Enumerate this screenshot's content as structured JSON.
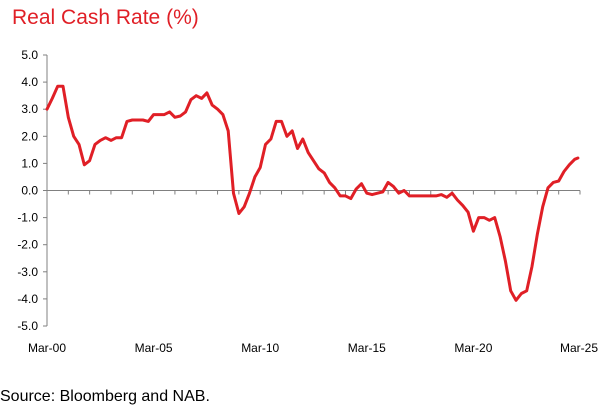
{
  "chart_data": {
    "type": "line",
    "title": "Real Cash Rate (%)",
    "xlabel": "",
    "ylabel": "",
    "y_ticks": [
      "5.0",
      "4.0",
      "3.0",
      "2.0",
      "1.0",
      "0.0",
      "-1.0",
      "-2.0",
      "-3.0",
      "-4.0",
      "-5.0"
    ],
    "ylim": [
      -5,
      5
    ],
    "x_ticks": [
      {
        "label": "Mar-00",
        "year": 2000.17
      },
      {
        "label": "Mar-05",
        "year": 2005.17
      },
      {
        "label": "Mar-10",
        "year": 2010.17
      },
      {
        "label": "Mar-15",
        "year": 2015.17
      },
      {
        "label": "Mar-20",
        "year": 2020.17
      },
      {
        "label": "Mar-25",
        "year": 2025.17
      }
    ],
    "xlim": [
      2000.17,
      2025.17
    ],
    "grid": false,
    "line_color": "#e01f26",
    "series": [
      {
        "points": [
          [
            2000.17,
            3.0
          ],
          [
            2000.42,
            3.4
          ],
          [
            2000.67,
            3.85
          ],
          [
            2000.92,
            3.85
          ],
          [
            2001.17,
            2.7
          ],
          [
            2001.42,
            2.0
          ],
          [
            2001.67,
            1.7
          ],
          [
            2001.92,
            0.95
          ],
          [
            2002.17,
            1.1
          ],
          [
            2002.42,
            1.7
          ],
          [
            2002.67,
            1.85
          ],
          [
            2002.92,
            1.95
          ],
          [
            2003.17,
            1.85
          ],
          [
            2003.42,
            1.95
          ],
          [
            2003.67,
            1.95
          ],
          [
            2003.92,
            2.55
          ],
          [
            2004.17,
            2.6
          ],
          [
            2004.42,
            2.6
          ],
          [
            2004.67,
            2.6
          ],
          [
            2004.92,
            2.55
          ],
          [
            2005.17,
            2.8
          ],
          [
            2005.42,
            2.8
          ],
          [
            2005.67,
            2.8
          ],
          [
            2005.92,
            2.9
          ],
          [
            2006.17,
            2.7
          ],
          [
            2006.42,
            2.75
          ],
          [
            2006.67,
            2.9
          ],
          [
            2006.92,
            3.35
          ],
          [
            2007.17,
            3.5
          ],
          [
            2007.42,
            3.4
          ],
          [
            2007.67,
            3.6
          ],
          [
            2007.92,
            3.15
          ],
          [
            2008.17,
            3.0
          ],
          [
            2008.42,
            2.8
          ],
          [
            2008.67,
            2.2
          ],
          [
            2008.92,
            -0.1
          ],
          [
            2009.17,
            -0.85
          ],
          [
            2009.42,
            -0.6
          ],
          [
            2009.67,
            -0.1
          ],
          [
            2009.92,
            0.5
          ],
          [
            2010.17,
            0.85
          ],
          [
            2010.42,
            1.7
          ],
          [
            2010.67,
            1.9
          ],
          [
            2010.92,
            2.55
          ],
          [
            2011.17,
            2.55
          ],
          [
            2011.42,
            2.0
          ],
          [
            2011.67,
            2.2
          ],
          [
            2011.92,
            1.55
          ],
          [
            2012.17,
            1.9
          ],
          [
            2012.42,
            1.4
          ],
          [
            2012.67,
            1.1
          ],
          [
            2012.92,
            0.8
          ],
          [
            2013.17,
            0.65
          ],
          [
            2013.42,
            0.3
          ],
          [
            2013.67,
            0.1
          ],
          [
            2013.92,
            -0.2
          ],
          [
            2014.17,
            -0.2
          ],
          [
            2014.42,
            -0.3
          ],
          [
            2014.67,
            0.05
          ],
          [
            2014.92,
            0.25
          ],
          [
            2015.17,
            -0.1
          ],
          [
            2015.42,
            -0.15
          ],
          [
            2015.67,
            -0.1
          ],
          [
            2015.92,
            -0.05
          ],
          [
            2016.17,
            0.3
          ],
          [
            2016.42,
            0.15
          ],
          [
            2016.67,
            -0.1
          ],
          [
            2016.92,
            0.0
          ],
          [
            2017.17,
            -0.2
          ],
          [
            2017.42,
            -0.2
          ],
          [
            2017.67,
            -0.2
          ],
          [
            2017.92,
            -0.2
          ],
          [
            2018.17,
            -0.2
          ],
          [
            2018.42,
            -0.2
          ],
          [
            2018.67,
            -0.15
          ],
          [
            2018.92,
            -0.25
          ],
          [
            2019.17,
            -0.1
          ],
          [
            2019.42,
            -0.35
          ],
          [
            2019.67,
            -0.55
          ],
          [
            2019.92,
            -0.8
          ],
          [
            2020.17,
            -1.5
          ],
          [
            2020.42,
            -1.0
          ],
          [
            2020.67,
            -1.0
          ],
          [
            2020.92,
            -1.1
          ],
          [
            2021.17,
            -1.0
          ],
          [
            2021.42,
            -1.7
          ],
          [
            2021.67,
            -2.6
          ],
          [
            2021.92,
            -3.7
          ],
          [
            2022.17,
            -4.05
          ],
          [
            2022.42,
            -3.8
          ],
          [
            2022.67,
            -3.7
          ],
          [
            2022.92,
            -2.8
          ],
          [
            2023.17,
            -1.6
          ],
          [
            2023.42,
            -0.6
          ],
          [
            2023.67,
            0.1
          ],
          [
            2023.92,
            0.3
          ],
          [
            2024.17,
            0.35
          ],
          [
            2024.42,
            0.7
          ],
          [
            2024.67,
            0.95
          ],
          [
            2024.92,
            1.15
          ],
          [
            2025.07,
            1.2
          ]
        ]
      }
    ]
  },
  "source": "Source: Bloomberg and NAB."
}
